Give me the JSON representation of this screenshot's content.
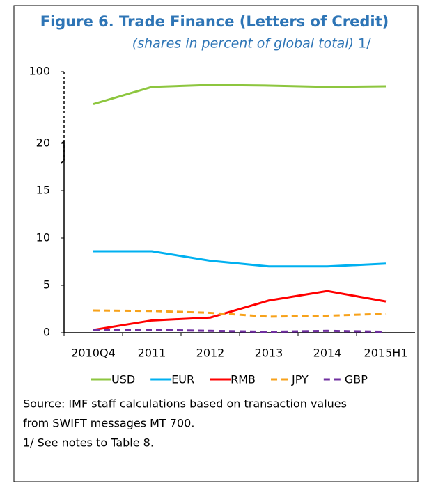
{
  "chart_data": {
    "type": "line",
    "title": "Figure 6. Trade Finance (Letters of Credit)",
    "subtitle": "(shares in percent of global total)",
    "subtitle_note": "1/",
    "categories": [
      "2010Q4",
      "2011",
      "2012",
      "2013",
      "2014",
      "2015H1"
    ],
    "ylim": [
      0,
      20
    ],
    "yticks": [
      0,
      5,
      10,
      15,
      20
    ],
    "ylim_upper": [
      50,
      100
    ],
    "yticks_upper": [
      100
    ],
    "series": [
      {
        "name": "USD",
        "color": "#8dc63f",
        "dash": false,
        "axis": "upper",
        "values": [
          76,
          88.7,
          90.2,
          89.7,
          88.7,
          89.2
        ]
      },
      {
        "name": "EUR",
        "color": "#00b0f0",
        "dash": false,
        "values": [
          8.6,
          8.6,
          7.6,
          7.0,
          7.0,
          7.3
        ]
      },
      {
        "name": "RMB",
        "color": "#ff0000",
        "dash": false,
        "values": [
          0.3,
          1.3,
          1.6,
          3.4,
          4.4,
          3.3
        ]
      },
      {
        "name": "JPY",
        "color": "#f7a21b",
        "dash": true,
        "values": [
          2.35,
          2.3,
          2.1,
          1.7,
          1.8,
          2.0
        ]
      },
      {
        "name": "GBP",
        "color": "#7030a0",
        "dash": true,
        "values": [
          0.3,
          0.3,
          0.2,
          0.1,
          0.2,
          0.1
        ]
      }
    ],
    "notes": [
      "Source: IMF staff calculations based on transaction values",
      "from SWIFT messages MT 700.",
      "1/ See notes to Table 8."
    ]
  }
}
